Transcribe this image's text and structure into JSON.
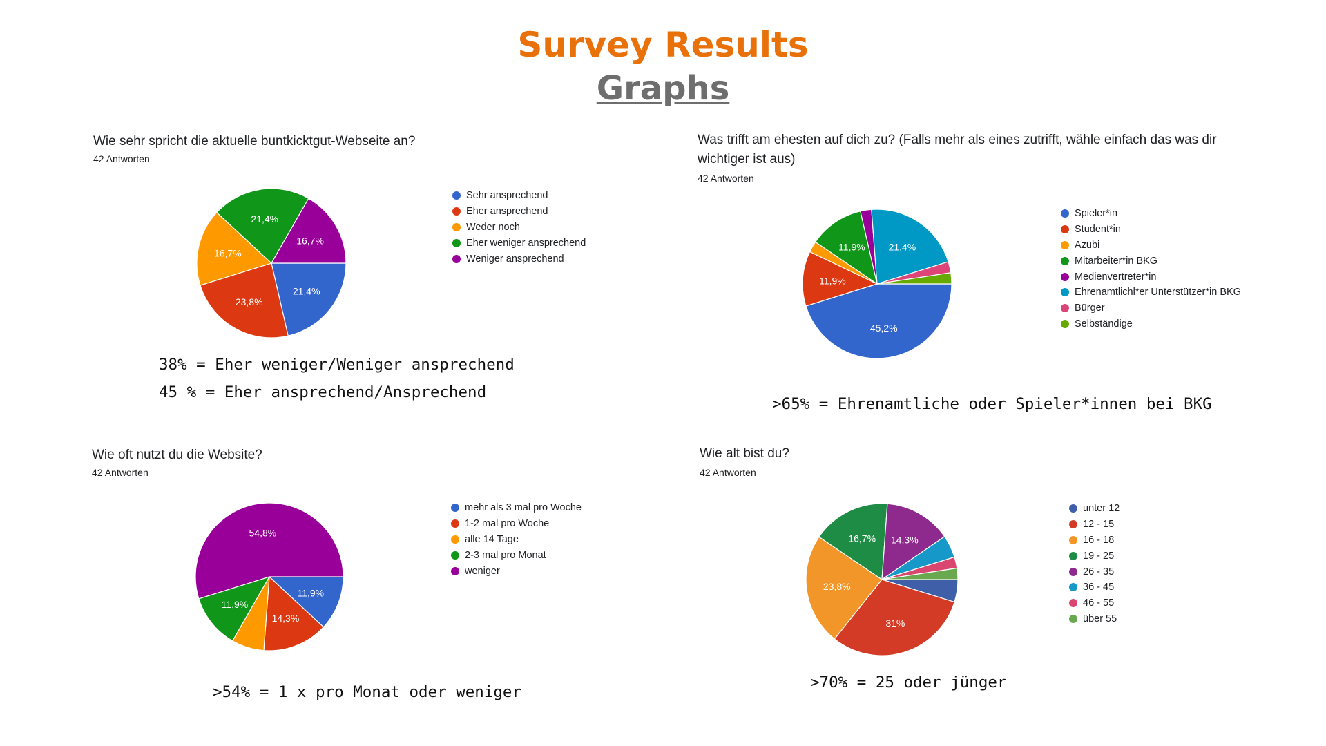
{
  "header": {
    "title": "Survey Results",
    "subtitle": "Graphs"
  },
  "colors": {
    "title": "#e8710a",
    "subtitle": "#6e6e6e"
  },
  "chart_data": [
    {
      "type": "pie",
      "title": "Wie sehr spricht die aktuelle buntkicktgut-Webseite an?",
      "subtitle": "42 Antworten",
      "legend": "right",
      "slices": [
        {
          "label": "Sehr ansprechend",
          "value": 21.4,
          "display": "21,4%",
          "color": "#3366cc"
        },
        {
          "label": "Eher ansprechend",
          "value": 23.8,
          "display": "23,8%",
          "color": "#dc3912"
        },
        {
          "label": "Weder noch",
          "value": 16.7,
          "display": "16,7%",
          "color": "#ff9900"
        },
        {
          "label": "Eher weniger ansprechend",
          "value": 21.4,
          "display": "21,4%",
          "color": "#109618"
        },
        {
          "label": "Weniger ansprechend",
          "value": 16.7,
          "display": "16,7%",
          "color": "#990099"
        }
      ]
    },
    {
      "type": "pie",
      "title": "Was trifft am ehesten auf dich zu? (Falls mehr als eines zutrifft, wähle einfach das was dir wichtiger ist aus)",
      "subtitle": "42 Antworten",
      "legend": "right",
      "slices": [
        {
          "label": "Spieler*in",
          "value": 45.2,
          "display": "45,2%",
          "color": "#3366cc"
        },
        {
          "label": "Student*in",
          "value": 11.9,
          "display": "11,9%",
          "color": "#dc3912"
        },
        {
          "label": "Azubi",
          "value": 2.4,
          "display": "",
          "color": "#ff9900"
        },
        {
          "label": "Mitarbeiter*in BKG",
          "value": 11.9,
          "display": "11,9%",
          "color": "#109618"
        },
        {
          "label": "Medienvertreter*in",
          "value": 2.4,
          "display": "",
          "color": "#990099"
        },
        {
          "label": "Ehrenamtlichl*er Unterstützer*in BKG",
          "value": 21.4,
          "display": "21,4%",
          "color": "#0099c6"
        },
        {
          "label": "Bürger",
          "value": 2.4,
          "display": "",
          "color": "#dd4477"
        },
        {
          "label": "Selbständige",
          "value": 2.4,
          "display": "",
          "color": "#66aa00"
        }
      ]
    },
    {
      "type": "pie",
      "title": "Wie oft nutzt du die Website?",
      "subtitle": "42 Antworten",
      "legend": "right",
      "slices": [
        {
          "label": "mehr als 3 mal pro Woche",
          "value": 11.9,
          "display": "11,9%",
          "color": "#3366cc"
        },
        {
          "label": "1-2 mal pro Woche",
          "value": 14.3,
          "display": "14,3%",
          "color": "#dc3912"
        },
        {
          "label": "alle 14 Tage",
          "value": 7.1,
          "display": "",
          "color": "#ff9900"
        },
        {
          "label": "2-3 mal pro Monat",
          "value": 11.9,
          "display": "11,9%",
          "color": "#109618"
        },
        {
          "label": "weniger",
          "value": 54.8,
          "display": "54,8%",
          "color": "#990099"
        }
      ]
    },
    {
      "type": "pie",
      "title": "Wie alt bist du?",
      "subtitle": "42 Antworten",
      "legend": "right",
      "slices": [
        {
          "label": "unter 12",
          "value": 4.8,
          "display": "",
          "color": "#3f5fa8"
        },
        {
          "label": "12 - 15",
          "value": 31.0,
          "display": "31%",
          "color": "#d33b27"
        },
        {
          "label": "16 - 18",
          "value": 23.8,
          "display": "23,8%",
          "color": "#f3962a"
        },
        {
          "label": "19 - 25",
          "value": 16.7,
          "display": "16,7%",
          "color": "#1e8c45"
        },
        {
          "label": "26 - 35",
          "value": 14.3,
          "display": "14,3%",
          "color": "#8e2a8d"
        },
        {
          "label": "36 - 45",
          "value": 4.8,
          "display": "",
          "color": "#1698c9"
        },
        {
          "label": "46 - 55",
          "value": 2.4,
          "display": "",
          "color": "#d9466f"
        },
        {
          "label": "über 55",
          "value": 2.4,
          "display": "",
          "color": "#6aa84f"
        }
      ]
    }
  ],
  "notes": {
    "chart1_line1": "38% = Eher weniger/Weniger ansprechend",
    "chart1_line2": "45 % = Eher ansprechend/Ansprechend",
    "chart2": ">65% = Ehrenamtliche oder Spieler*innen bei BKG",
    "chart3": ">54% = 1 x pro Monat oder weniger",
    "chart4": ">70% = 25 oder jünger"
  }
}
